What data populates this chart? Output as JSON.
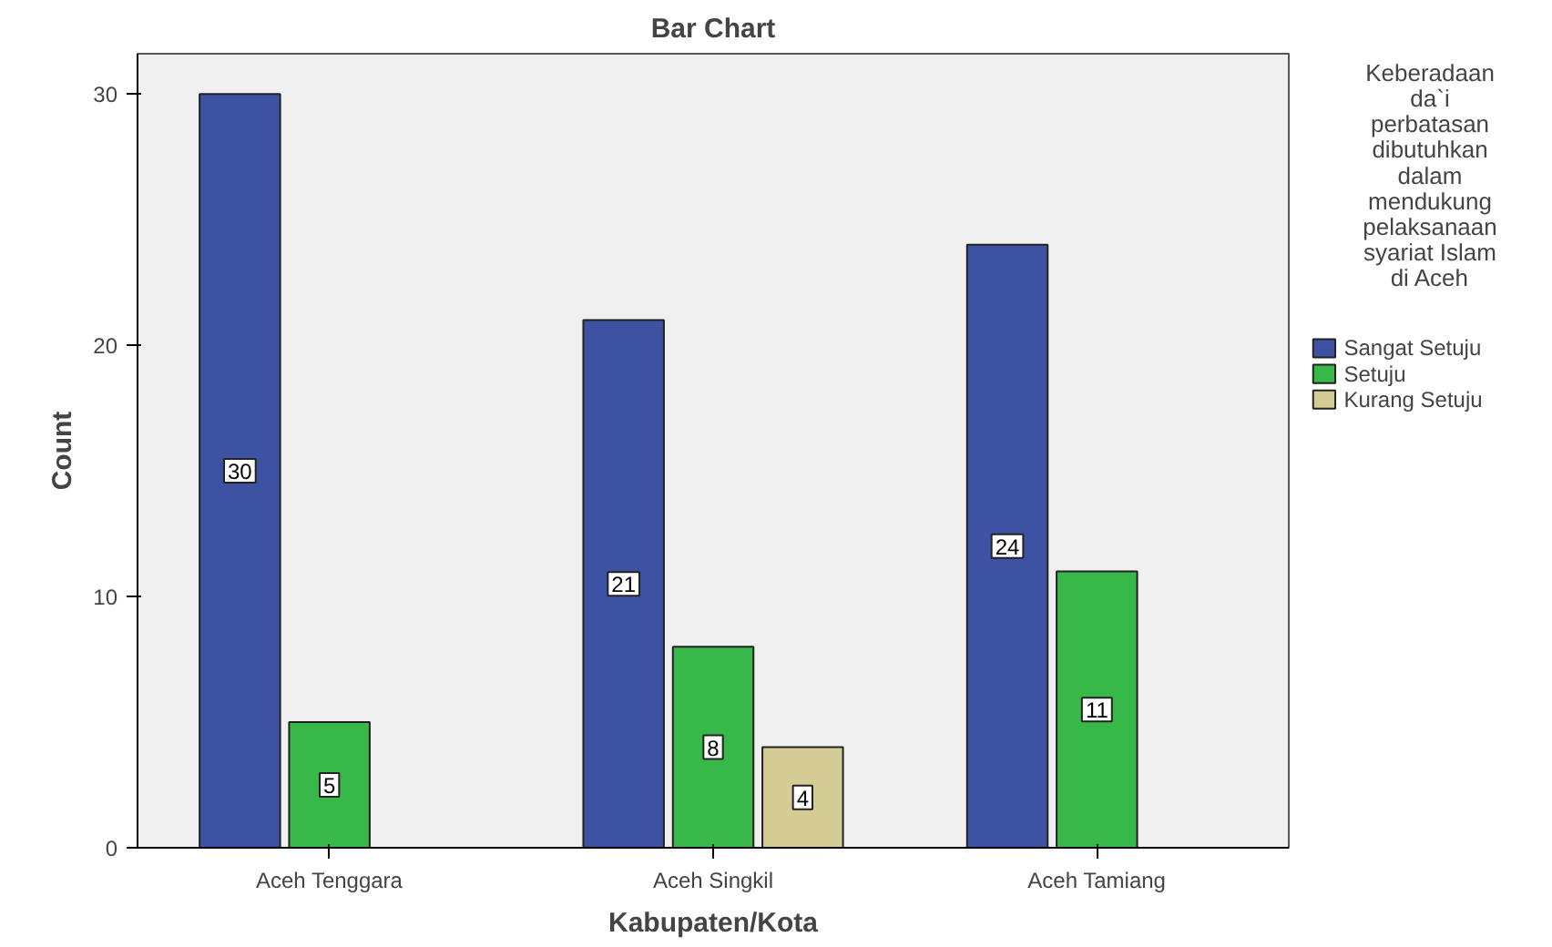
{
  "chart_data": {
    "type": "bar",
    "title": "Bar Chart",
    "xlabel": "Kabupaten/Kota",
    "ylabel": "Count",
    "legend_title": "Keberadaan da`i perbatasan dibutuhkan dalam mendukung pelaksanaan syariat Islam di Aceh",
    "categories": [
      "Aceh Tenggara",
      "Aceh Singkil",
      "Aceh Tamiang"
    ],
    "series": [
      {
        "name": "Sangat Setuju",
        "color": "#3e52a4",
        "values": [
          30,
          21,
          24
        ]
      },
      {
        "name": "Setuju",
        "color": "#38b848",
        "values": [
          5,
          8,
          11
        ]
      },
      {
        "name": "Kurang Setuju",
        "color": "#d4cc94",
        "values": [
          null,
          4,
          null
        ]
      }
    ],
    "ylim": [
      0,
      31.6
    ],
    "yticks": [
      0,
      10,
      20,
      30
    ],
    "grid": false,
    "legend": "right",
    "data_labels": true
  }
}
